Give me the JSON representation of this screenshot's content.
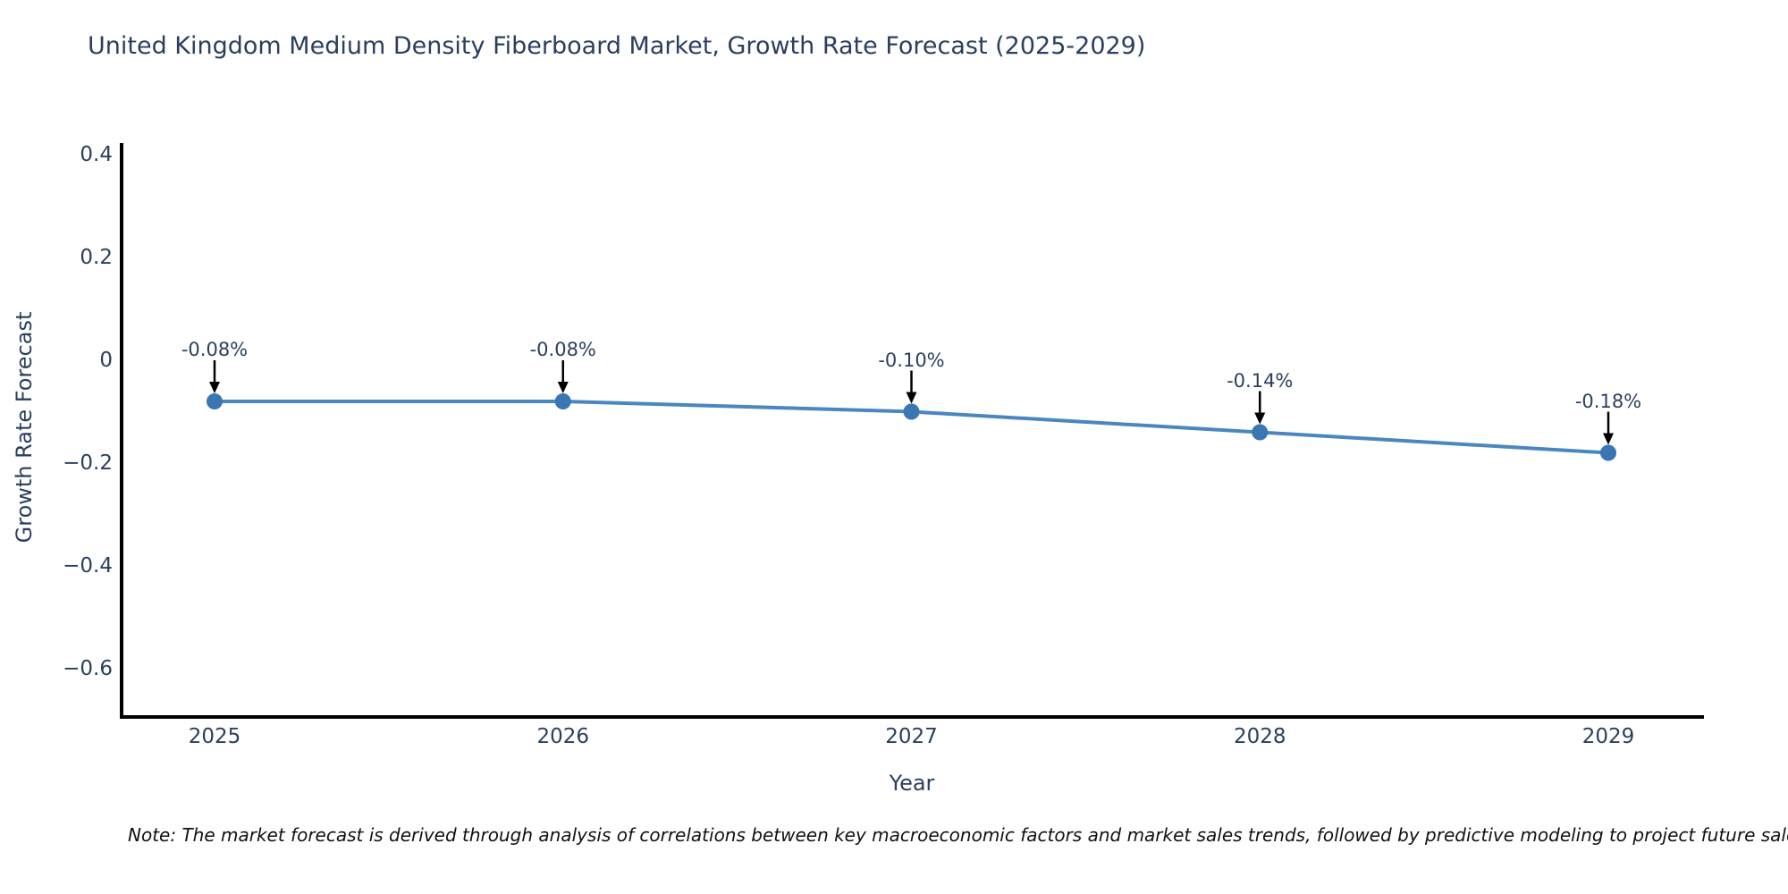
{
  "note": "Note: The market forecast is derived through analysis of correlations between key macroeconomic factors and market sales trends, followed by predictive modeling to project future sales.",
  "chart_data": {
    "type": "line",
    "title": "United Kingdom Medium Density Fiberboard Market, Growth Rate Forecast (2025-2029)",
    "xlabel": "Year",
    "ylabel": "Growth Rate Forecast",
    "x": [
      "2025",
      "2026",
      "2027",
      "2028",
      "2029"
    ],
    "series": [
      {
        "name": "Growth Rate Forecast",
        "values": [
          -0.08,
          -0.08,
          -0.1,
          -0.14,
          -0.18
        ],
        "point_labels": [
          "-0.08%",
          "-0.08%",
          "-0.10%",
          "-0.14%",
          "-0.18%"
        ]
      }
    ],
    "ytick_labels": [
      "0.4",
      "0.2",
      "0",
      "−0.2",
      "−0.4",
      "−0.6"
    ],
    "ytick_values": [
      0.4,
      0.2,
      0,
      -0.2,
      -0.4,
      -0.6
    ],
    "ylim": [
      -0.69,
      0.43
    ],
    "grid": false,
    "legend": "none",
    "colors": {
      "line": "#4a86c0",
      "marker": "#3a76b2",
      "axis_line": "#000000",
      "text": "#2a3f5f",
      "annotation_arrow": "#000000",
      "note_text": "#111111",
      "background": "#ffffff"
    }
  }
}
